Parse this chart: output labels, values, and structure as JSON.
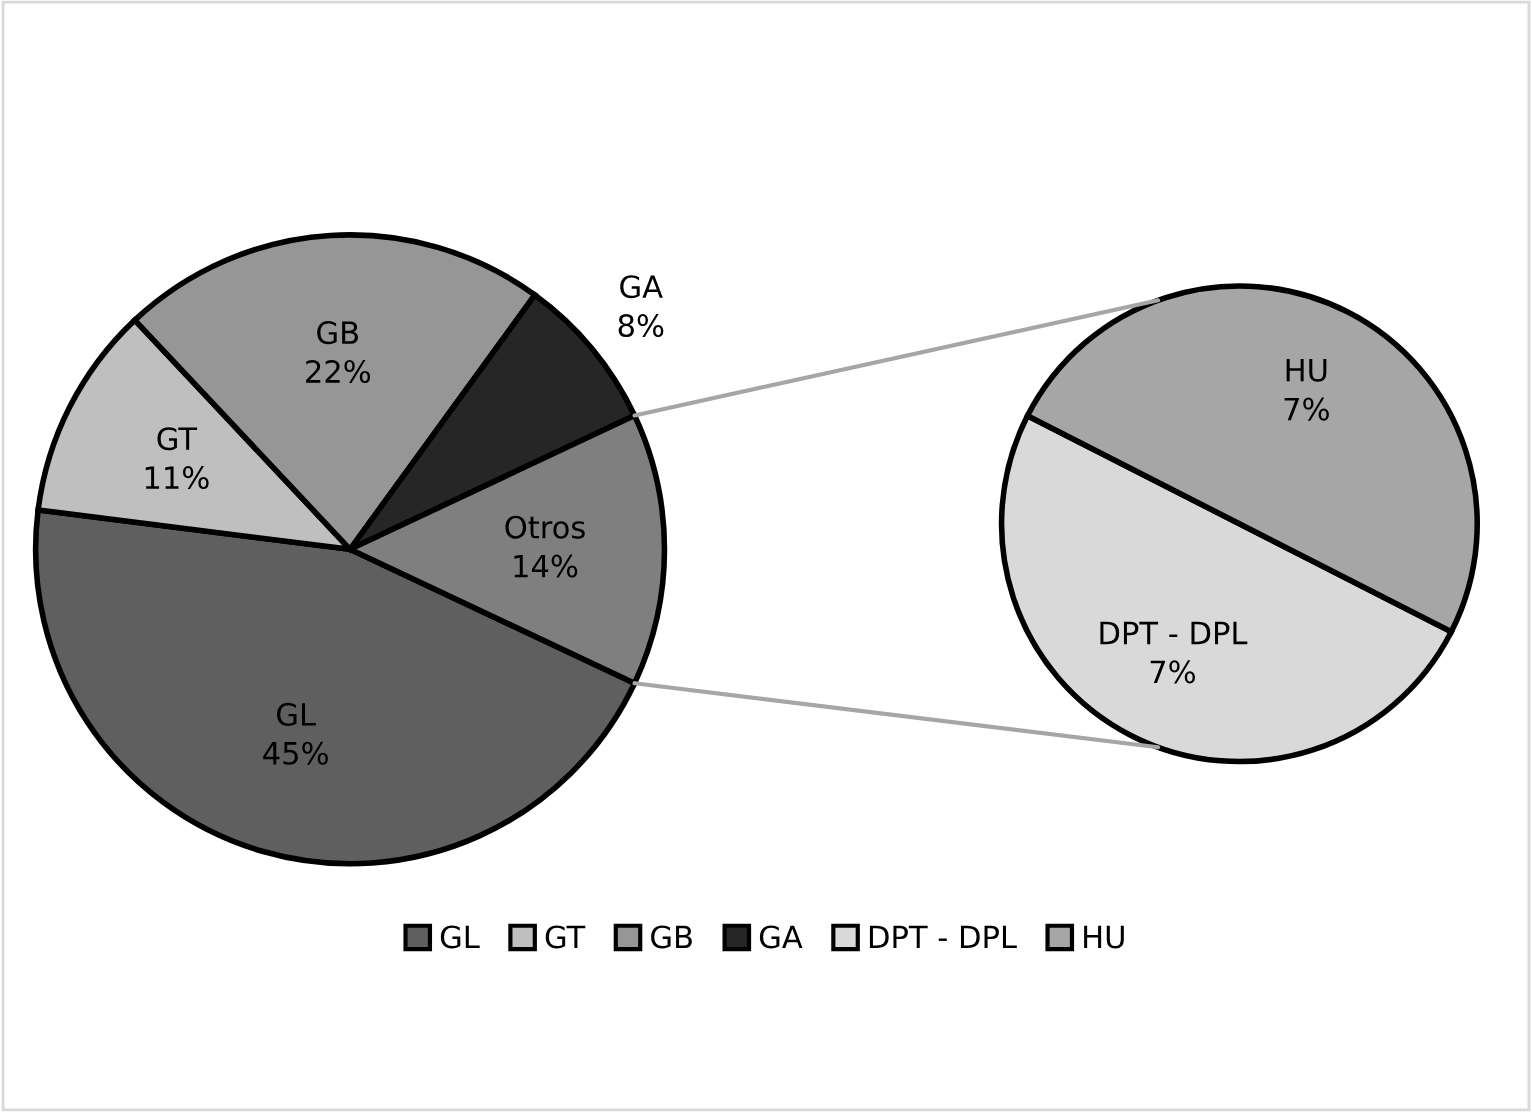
{
  "chart_data": [
    {
      "type": "pie",
      "categories": [
        "GL",
        "GT",
        "GB",
        "GA",
        "Otros"
      ],
      "values": [
        45,
        11,
        22,
        8,
        14
      ],
      "colors": [
        "#5f5f5f",
        "#bfbfbf",
        "#969696",
        "#262626",
        "#7f7f7f"
      ],
      "value_labels": [
        "45%",
        "11%",
        "22%",
        "8%",
        "14%"
      ],
      "legend": "bottom"
    },
    {
      "type": "pie",
      "categories": [
        "DPT - DPL",
        "HU"
      ],
      "values": [
        7,
        7
      ],
      "colors": [
        "#d9d9d9",
        "#a6a6a6"
      ],
      "value_labels": [
        "7%",
        "7%"
      ],
      "legend": "bottom"
    }
  ]
}
